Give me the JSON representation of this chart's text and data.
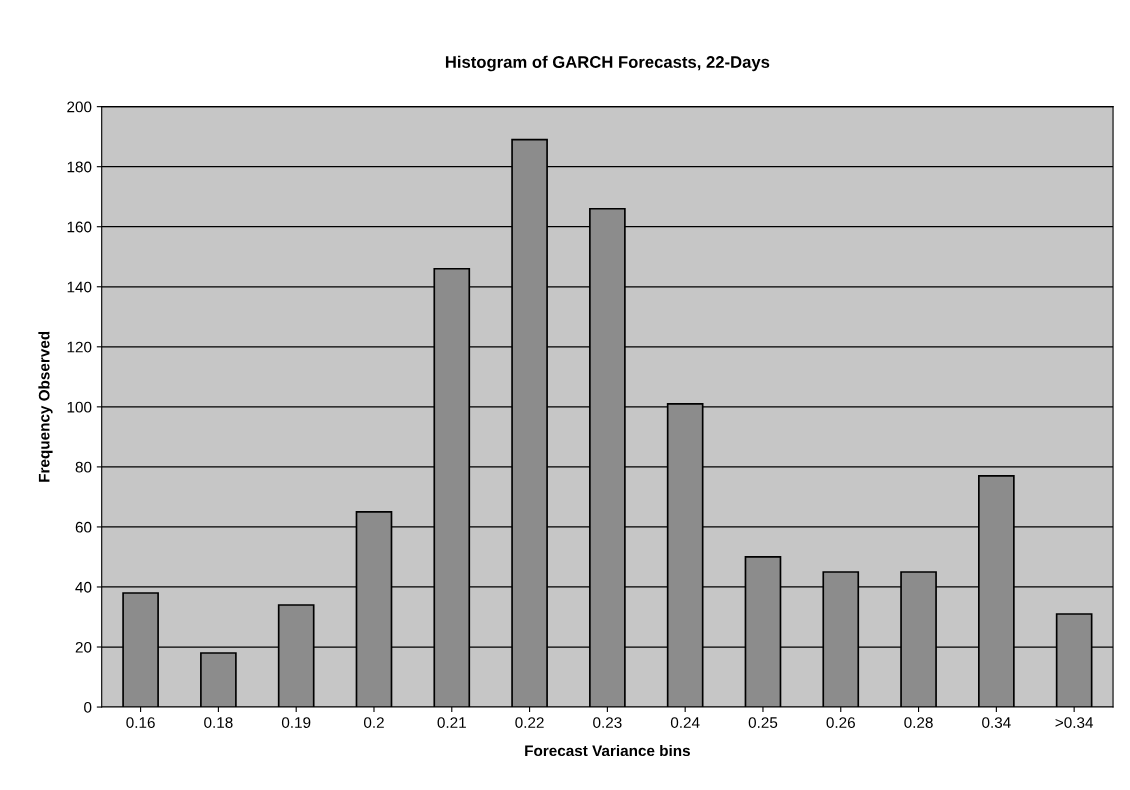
{
  "chart_data": {
    "type": "bar",
    "title": "Histogram of GARCH Forecasts, 22-Days",
    "xlabel": "Forecast Variance bins",
    "ylabel": "Frequency Observed",
    "categories": [
      "0.16",
      "0.18",
      "0.19",
      "0.2",
      "0.21",
      "0.22",
      "0.23",
      "0.24",
      "0.25",
      "0.26",
      "0.28",
      "0.34",
      ">0.34"
    ],
    "values": [
      38,
      18,
      34,
      65,
      146,
      189,
      166,
      101,
      50,
      45,
      45,
      77,
      31
    ],
    "color": "#8c8c8c",
    "ylim": [
      0,
      200
    ],
    "yticks": [
      0,
      20,
      40,
      60,
      80,
      100,
      120,
      140,
      160,
      180,
      200
    ],
    "grid": "y",
    "legend": false
  }
}
